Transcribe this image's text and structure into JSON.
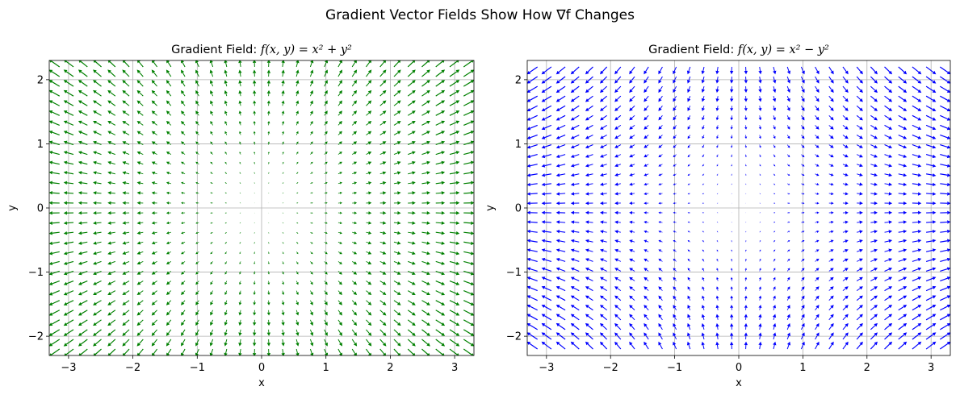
{
  "figure": {
    "suptitle": "Gradient Vector Fields Show How ∇f Changes"
  },
  "chart_data": [
    {
      "type": "quiver",
      "title_prefix": "Gradient Field: ",
      "title_math": "f(x, y) = x² + y²",
      "function": "x^2 + y^2",
      "gradient": [
        "2x",
        "2y"
      ],
      "xlabel": "x",
      "ylabel": "y",
      "xlim": [
        -3.3,
        3.3
      ],
      "ylim": [
        -2.3,
        2.3
      ],
      "xticks": [
        -3,
        -2,
        -1,
        0,
        1,
        2,
        3
      ],
      "yticks": [
        -2,
        -1,
        0,
        1,
        2
      ],
      "xtick_labels": [
        "−3",
        "−2",
        "−1",
        "0",
        "1",
        "2",
        "3"
      ],
      "ytick_labels": [
        "−2",
        "−1",
        "0",
        "1",
        "2"
      ],
      "grid": true,
      "arrow_color": "#008000",
      "sample_x": {
        "start": -3.14,
        "stop": 3.14,
        "count": 30
      },
      "sample_y": {
        "start": -2.2,
        "stop": 2.2,
        "count": 30
      },
      "sample_xy_values": [
        {
          "x": -3,
          "y": 2,
          "u": -6,
          "v": 4
        },
        {
          "x": 0,
          "y": 0,
          "u": 0,
          "v": 0
        },
        {
          "x": 3,
          "y": -2,
          "u": 6,
          "v": -4
        }
      ]
    },
    {
      "type": "quiver",
      "title_prefix": "Gradient Field: ",
      "title_math": "f(x, y) = x² − y²",
      "function": "x^2 - y^2",
      "gradient": [
        "2x",
        "-2y"
      ],
      "xlabel": "x",
      "ylabel": "y",
      "xlim": [
        -3.3,
        3.3
      ],
      "ylim": [
        -2.3,
        2.3
      ],
      "xticks": [
        -3,
        -2,
        -1,
        0,
        1,
        2,
        3
      ],
      "yticks": [
        -2,
        -1,
        0,
        1,
        2
      ],
      "xtick_labels": [
        "−3",
        "−2",
        "−1",
        "0",
        "1",
        "2",
        "3"
      ],
      "ytick_labels": [
        "−2",
        "−1",
        "0",
        "1",
        "2"
      ],
      "grid": true,
      "arrow_color": "#0000ff",
      "sample_x": {
        "start": -3.14,
        "stop": 3.14,
        "count": 30
      },
      "sample_y": {
        "start": -2.2,
        "stop": 2.2,
        "count": 30
      },
      "sample_xy_values": [
        {
          "x": -3,
          "y": 2,
          "u": -6,
          "v": -4
        },
        {
          "x": 0,
          "y": 0,
          "u": 0,
          "v": 0
        },
        {
          "x": 3,
          "y": -2,
          "u": 6,
          "v": 4
        }
      ]
    }
  ]
}
